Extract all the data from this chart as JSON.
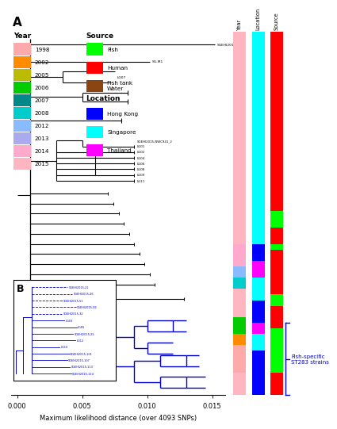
{
  "panel_A_label": "A",
  "panel_B_label": "B",
  "year_list": [
    "1998",
    "2002",
    "2005",
    "2006",
    "2007",
    "2008",
    "2012",
    "2013",
    "2014",
    "2015"
  ],
  "year_color_list": [
    "#FFAAAA",
    "#FF8C00",
    "#BBBB00",
    "#00CC00",
    "#008888",
    "#00CCCC",
    "#88BBFF",
    "#AAAAEE",
    "#FFAACC",
    "#FFB6C1"
  ],
  "source_labels": [
    "Fish",
    "Human",
    "Fish tank\nWater"
  ],
  "source_colors": [
    "#00FF00",
    "#FF0000",
    "#8B4513"
  ],
  "location_labels": [
    "Hong Kong",
    "Singapore",
    "Thailand"
  ],
  "location_colors": [
    "#0000FF",
    "#00FFFF",
    "#FF00FF"
  ],
  "xlabel": "Maximum likelihood distance (over 4093 SNPs)",
  "xticks": [
    0.0,
    0.005,
    0.01,
    0.015
  ],
  "fish_specific_label": "Fish-specific\nST283 strains",
  "tip_labels_top": [
    "SGEHI2015-95",
    "SG-M1",
    "LG07"
  ],
  "mid_labels": [
    "SGEHI2015-NWC941_2",
    "LG01",
    "LG02",
    "LG04",
    "LG06",
    "LG08",
    "LG09",
    "LG11"
  ],
  "b_labels": [
    "SGEHI2015-21",
    "SGEHI2015-26",
    "SGEHI2015-51",
    "SGEHI2015-99",
    "SGEHI2015-32",
    "LG03",
    "LG05",
    "SGEHI2015-25",
    "LG12",
    "LG10",
    "SGEHI2015-101",
    "SGEHI2015-107",
    "SGEHI2015-113",
    "SGEHI2015-114"
  ]
}
